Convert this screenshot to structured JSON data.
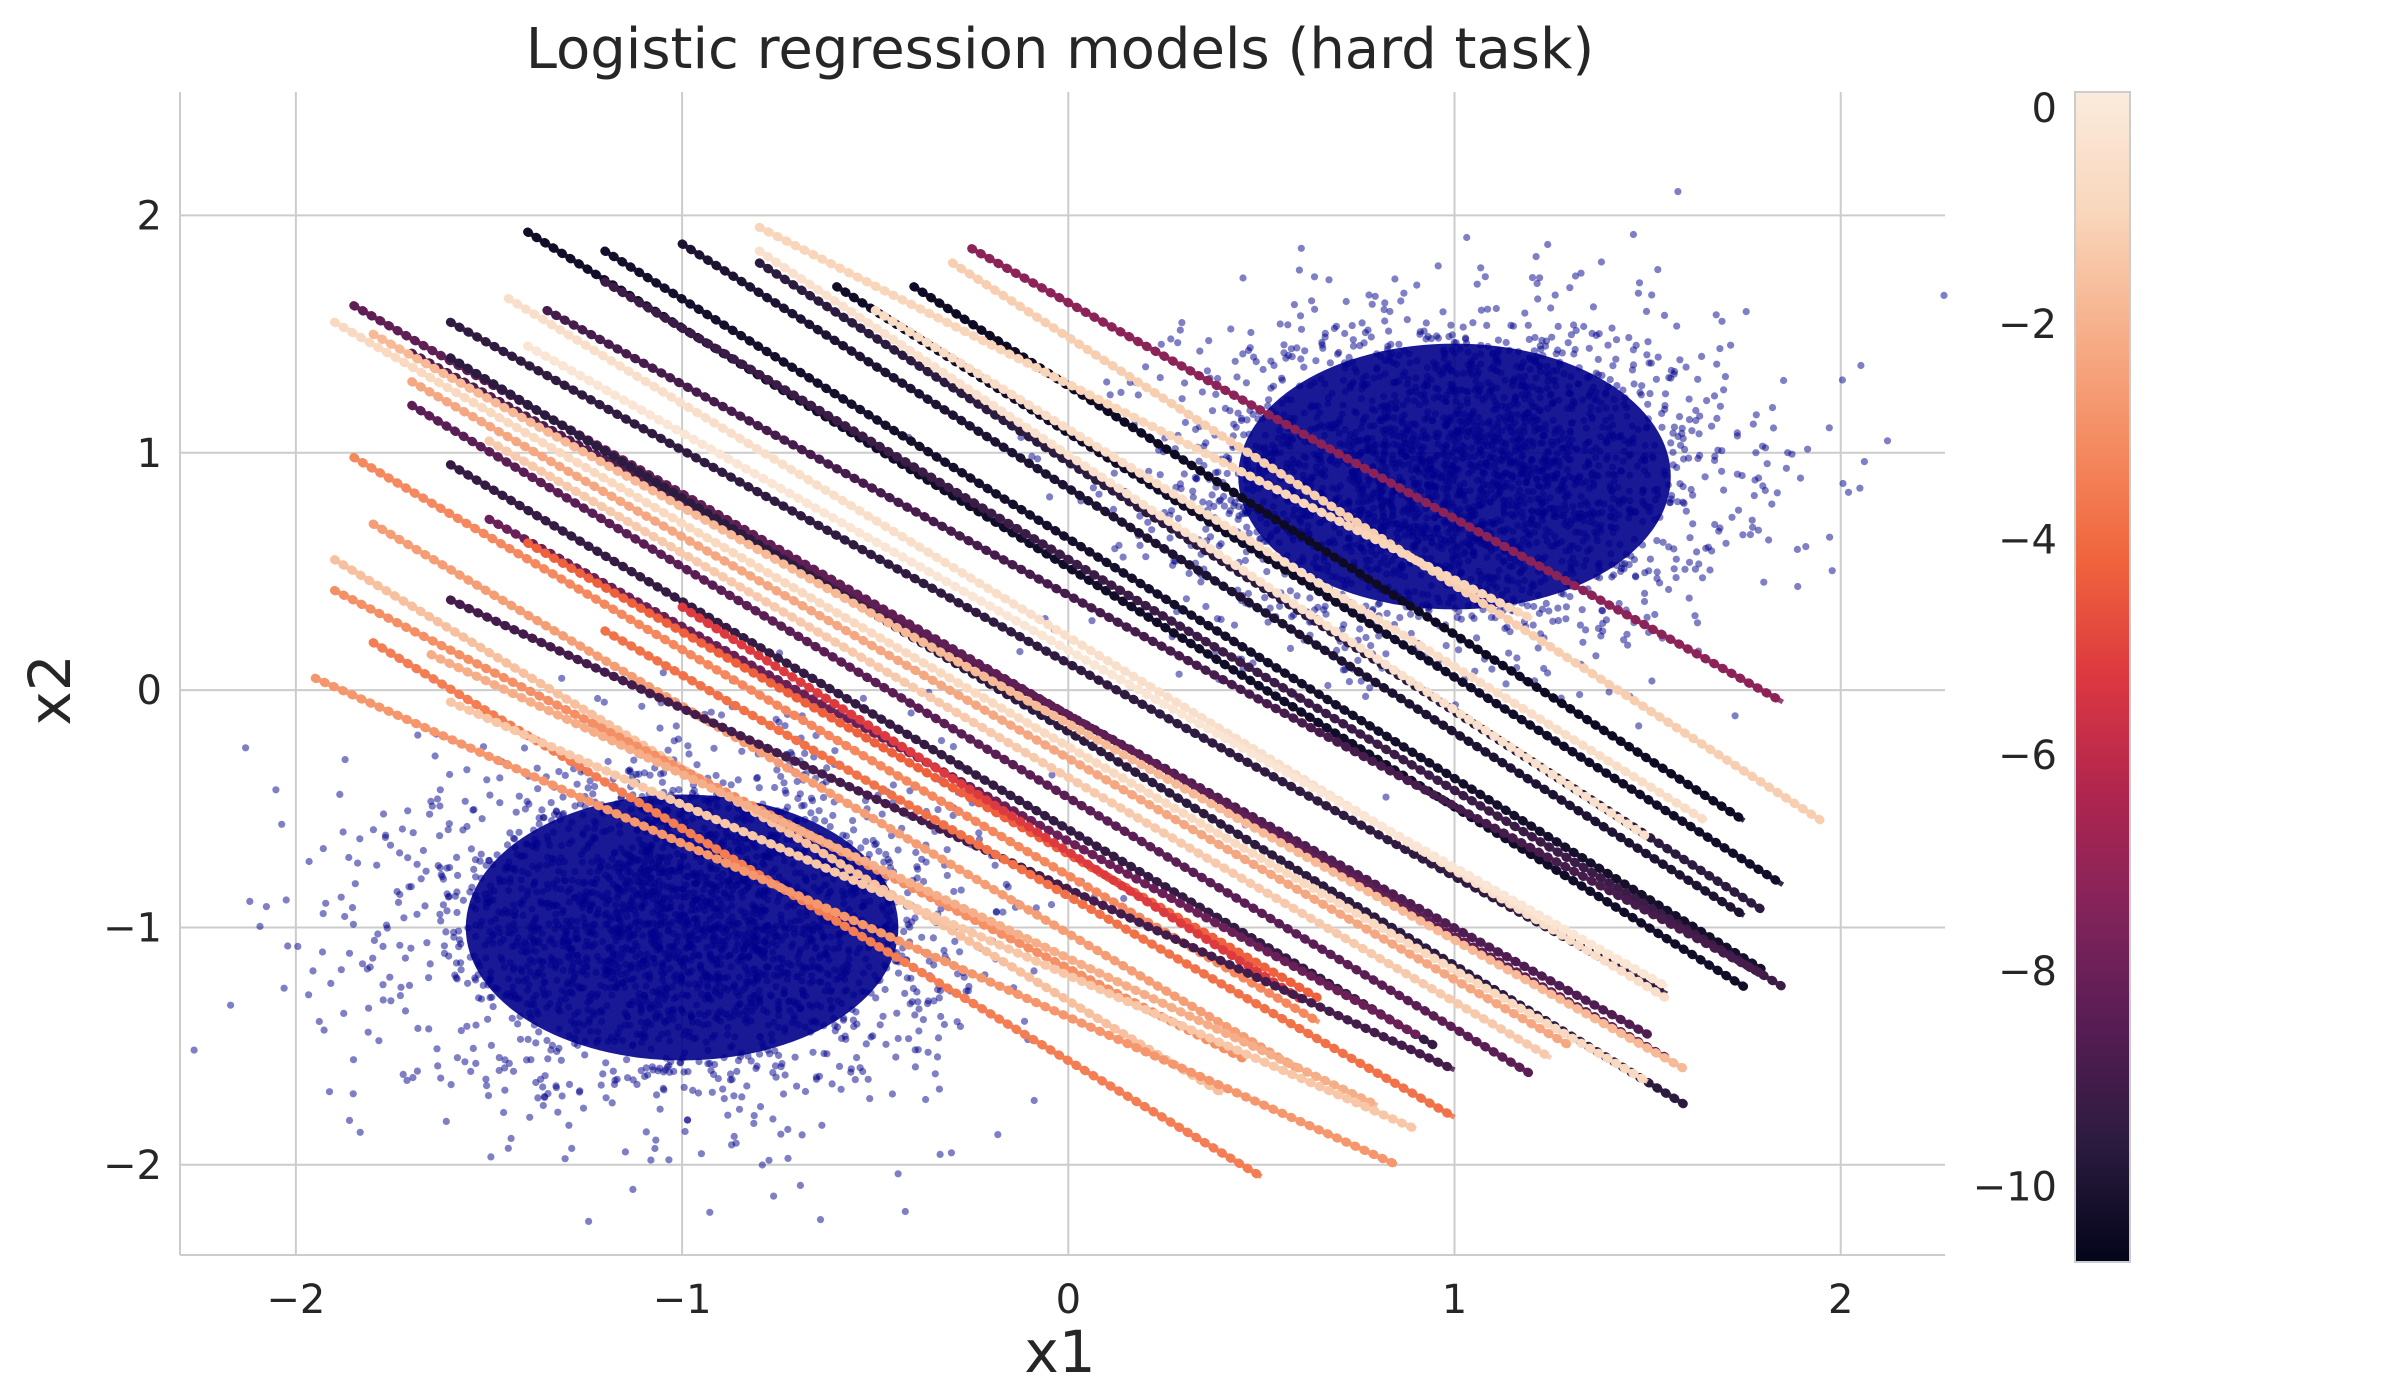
{
  "chart_data": {
    "type": "scatter",
    "title": "Logistic regression models (hard task)",
    "xlabel": "x1",
    "ylabel": "x2",
    "xlim": [
      -2.3,
      2.27
    ],
    "ylim": [
      -2.38,
      2.52
    ],
    "x_ticks": [
      -2,
      -1,
      0,
      1,
      2
    ],
    "x_tick_labels": [
      "−2",
      "−1",
      "0",
      "1",
      "2"
    ],
    "y_ticks": [
      -2,
      -1,
      0,
      1,
      2
    ],
    "y_tick_labels": [
      "−2",
      "−1",
      "0",
      "1",
      "2"
    ],
    "grid": true,
    "point_color": "#00008b",
    "clusters": [
      {
        "name": "",
        "center": [
          1.0,
          0.9
        ],
        "spread": [
          0.35,
          0.35
        ]
      },
      {
        "name": "",
        "center": [
          -1.0,
          -1.0
        ],
        "spread": [
          0.35,
          0.35
        ]
      }
    ],
    "decision_boundaries": [
      {
        "x": [
          -0.25,
          1.85
        ],
        "y": [
          1.86,
          -0.05
        ],
        "c": -7.2
      },
      {
        "x": [
          -1.4,
          1.75
        ],
        "y": [
          1.93,
          -1.25
        ],
        "c": -10.3
      },
      {
        "x": [
          -1.2,
          1.8
        ],
        "y": [
          1.85,
          -1.18
        ],
        "c": -10.2
      },
      {
        "x": [
          -1.0,
          1.75
        ],
        "y": [
          1.88,
          -0.95
        ],
        "c": -10.0
      },
      {
        "x": [
          -0.8,
          1.8
        ],
        "y": [
          1.8,
          -0.93
        ],
        "c": -9.6
      },
      {
        "x": [
          -0.6,
          1.85
        ],
        "y": [
          1.7,
          -0.82
        ],
        "c": -10.3
      },
      {
        "x": [
          -0.4,
          1.75
        ],
        "y": [
          1.7,
          -0.55
        ],
        "c": -10.4
      },
      {
        "x": [
          -0.8,
          1.5
        ],
        "y": [
          1.85,
          -0.62
        ],
        "c": -0.4
      },
      {
        "x": [
          -0.5,
          1.65
        ],
        "y": [
          1.6,
          -0.55
        ],
        "c": -0.6
      },
      {
        "x": [
          -0.3,
          1.95
        ],
        "y": [
          1.8,
          -0.55
        ],
        "c": -1.2
      },
      {
        "x": [
          -0.8,
          1.2
        ],
        "y": [
          1.95,
          0.3
        ],
        "c": -1.0
      },
      {
        "x": [
          -1.2,
          1.85
        ],
        "y": [
          1.72,
          -1.25
        ],
        "c": -9.2
      },
      {
        "x": [
          -1.35,
          1.8
        ],
        "y": [
          1.6,
          -1.2
        ],
        "c": -8.9
      },
      {
        "x": [
          -1.6,
          1.55
        ],
        "y": [
          1.55,
          -1.28
        ],
        "c": -9.5
      },
      {
        "x": [
          -1.7,
          1.5
        ],
        "y": [
          1.42,
          -1.45
        ],
        "c": -8.7
      },
      {
        "x": [
          -1.85,
          1.55
        ],
        "y": [
          1.62,
          -1.55
        ],
        "c": -8.3
      },
      {
        "x": [
          -1.6,
          1.6
        ],
        "y": [
          1.4,
          -1.75
        ],
        "c": -9.6
      },
      {
        "x": [
          -1.45,
          1.55
        ],
        "y": [
          1.65,
          -1.3
        ],
        "c": -0.5
      },
      {
        "x": [
          -1.8,
          1.6
        ],
        "y": [
          1.5,
          -1.6
        ],
        "c": -1.8
      },
      {
        "x": [
          -1.9,
          1.5
        ],
        "y": [
          1.55,
          -1.65
        ],
        "c": -0.8
      },
      {
        "x": [
          -1.7,
          1.3
        ],
        "y": [
          1.3,
          -1.5
        ],
        "c": -2.3
      },
      {
        "x": [
          -1.5,
          1.25
        ],
        "y": [
          1.05,
          -1.55
        ],
        "c": -1.3
      },
      {
        "x": [
          -1.4,
          1.55
        ],
        "y": [
          1.45,
          -1.25
        ],
        "c": -0.2
      },
      {
        "x": [
          -1.7,
          1.2
        ],
        "y": [
          1.2,
          -1.62
        ],
        "c": -8.4
      },
      {
        "x": [
          -1.6,
          0.95
        ],
        "y": [
          0.95,
          -1.5
        ],
        "c": -9.4
      },
      {
        "x": [
          -1.5,
          0.9
        ],
        "y": [
          0.72,
          -1.45
        ],
        "c": -8.0
      },
      {
        "x": [
          -1.85,
          0.65
        ],
        "y": [
          0.98,
          -1.4
        ],
        "c": -3.2
      },
      {
        "x": [
          -1.8,
          0.6
        ],
        "y": [
          0.7,
          -1.6
        ],
        "c": -2.6
      },
      {
        "x": [
          -1.4,
          0.65
        ],
        "y": [
          0.62,
          -1.3
        ],
        "c": -4.3
      },
      {
        "x": [
          -1.0,
          0.6
        ],
        "y": [
          0.35,
          -1.3
        ],
        "c": -5.2
      },
      {
        "x": [
          -1.9,
          0.4
        ],
        "y": [
          0.55,
          -1.7
        ],
        "c": -1.6
      },
      {
        "x": [
          -1.9,
          0.45
        ],
        "y": [
          0.42,
          -1.55
        ],
        "c": -3.0
      },
      {
        "x": [
          -1.8,
          0.5
        ],
        "y": [
          0.2,
          -2.05
        ],
        "c": -3.5
      },
      {
        "x": [
          -1.95,
          0.85
        ],
        "y": [
          0.05,
          -2.0
        ],
        "c": -2.8
      },
      {
        "x": [
          -1.65,
          0.8
        ],
        "y": [
          0.15,
          -1.75
        ],
        "c": -2.1
      },
      {
        "x": [
          -1.6,
          0.9
        ],
        "y": [
          -0.05,
          -1.85
        ],
        "c": -1.4
      },
      {
        "x": [
          -1.6,
          1.0
        ],
        "y": [
          0.38,
          -1.6
        ],
        "c": -9.0
      },
      {
        "x": [
          -1.2,
          1.0
        ],
        "y": [
          0.25,
          -1.8
        ],
        "c": -3.8
      }
    ],
    "colorbar": {
      "label": "",
      "range": [
        -10.7,
        0.15
      ],
      "ticks": [
        0,
        -2,
        -4,
        -6,
        -8,
        -10
      ],
      "tick_labels": [
        "0",
        "−2",
        "−4",
        "−6",
        "−8",
        "−10"
      ],
      "colormap": "rocket",
      "stops": [
        "#03051a",
        "#2b1b3f",
        "#561d54",
        "#82235b",
        "#b0254f",
        "#dc3840",
        "#f0643c",
        "#f48b61",
        "#f6b18c",
        "#f9d7bd",
        "#faebdd"
      ]
    }
  }
}
